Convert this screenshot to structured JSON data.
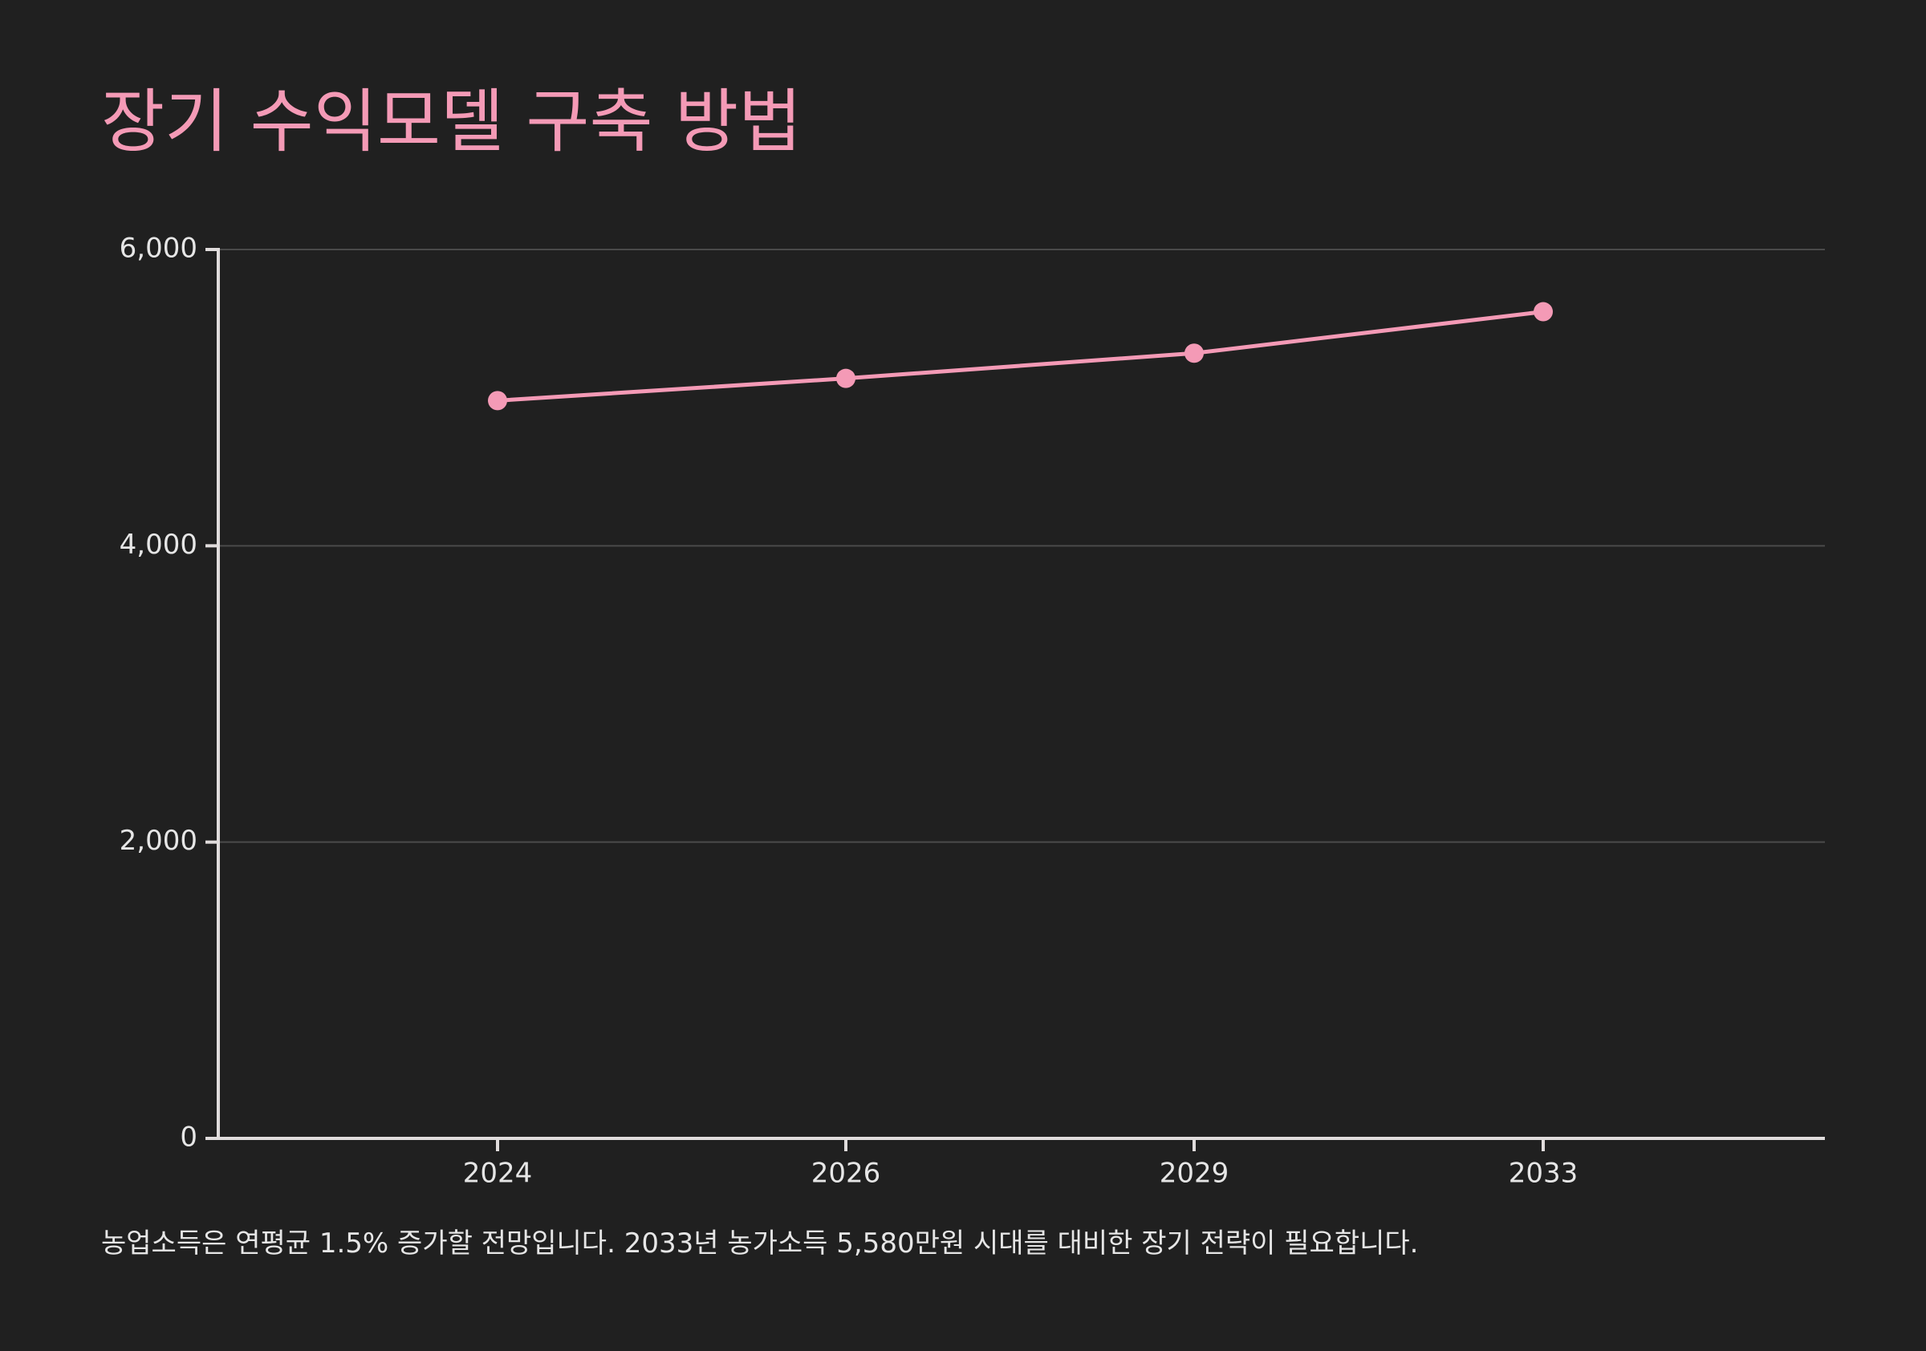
{
  "title": "장기 수익모델 구축 방법",
  "caption": "농업소득은 연평균 1.5% 증가할 전망입니다. 2033년 농가소득 5,580만원 시대를 대비한 장기 전략이 필요합니다.",
  "colors": {
    "background": "#202020",
    "accent": "#f49ab6",
    "axis": "#e0dcdc",
    "grid": "#4a4a4a",
    "text": "#e6e6e6"
  },
  "chart_data": {
    "type": "line",
    "title": "장기 수익모델 구축 방법",
    "categories": [
      "2024",
      "2026",
      "2029",
      "2033"
    ],
    "values": [
      4980,
      5130,
      5300,
      5580
    ],
    "ylim": [
      0,
      6000
    ],
    "yticks": [
      0,
      2000,
      4000,
      6000
    ],
    "ytick_labels": [
      "0",
      "2,000",
      "4,000",
      "6,000"
    ],
    "grid": true,
    "xlabel": "",
    "ylabel": ""
  }
}
